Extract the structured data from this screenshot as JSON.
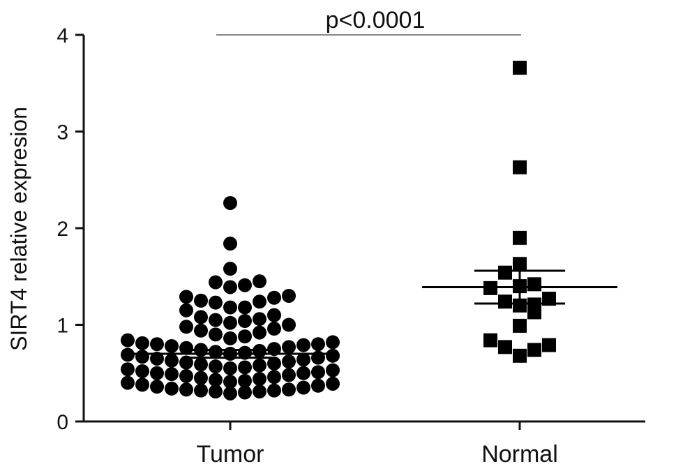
{
  "chart_data": {
    "type": "scatter",
    "subtype": "dot-plot",
    "categories": [
      "Tumor",
      "Normal"
    ],
    "ylabel": "SIRT4 relative expresion",
    "xlabel": "",
    "ylim": [
      0,
      4
    ],
    "yticks": [
      0,
      1,
      2,
      3,
      4
    ],
    "annotation": "p<0.0001",
    "grid": false,
    "legend": "none",
    "series": [
      {
        "category": "Tumor",
        "marker": "circle",
        "mean": 0.7,
        "sem_upper": 0.74,
        "sem_lower": 0.66,
        "values": [
          2.26,
          1.84,
          1.58,
          1.45,
          1.44,
          1.41,
          1.39,
          1.3,
          1.29,
          1.28,
          1.25,
          1.24,
          1.23,
          1.18,
          1.18,
          1.15,
          1.1,
          1.08,
          1.06,
          1.05,
          1.04,
          1.02,
          1.0,
          0.98,
          0.96,
          0.94,
          0.92,
          0.9,
          0.88,
          0.86,
          0.84,
          0.82,
          0.81,
          0.8,
          0.8,
          0.79,
          0.78,
          0.77,
          0.76,
          0.75,
          0.74,
          0.73,
          0.72,
          0.71,
          0.7,
          0.69,
          0.68,
          0.67,
          0.66,
          0.65,
          0.64,
          0.63,
          0.62,
          0.61,
          0.6,
          0.59,
          0.58,
          0.57,
          0.56,
          0.55,
          0.54,
          0.53,
          0.52,
          0.51,
          0.5,
          0.5,
          0.49,
          0.48,
          0.47,
          0.46,
          0.45,
          0.44,
          0.43,
          0.42,
          0.41,
          0.4,
          0.39,
          0.38,
          0.37,
          0.36,
          0.35,
          0.34,
          0.33,
          0.33,
          0.32,
          0.32,
          0.31,
          0.31,
          0.3,
          0.29
        ]
      },
      {
        "category": "Normal",
        "marker": "square",
        "mean": 1.39,
        "sem_upper": 1.56,
        "sem_lower": 1.22,
        "values": [
          3.66,
          2.63,
          1.9,
          1.63,
          1.54,
          1.42,
          1.4,
          1.38,
          1.27,
          1.24,
          1.21,
          1.2,
          1.13,
          0.99,
          0.84,
          0.79,
          0.77,
          0.74,
          0.68
        ]
      }
    ]
  }
}
